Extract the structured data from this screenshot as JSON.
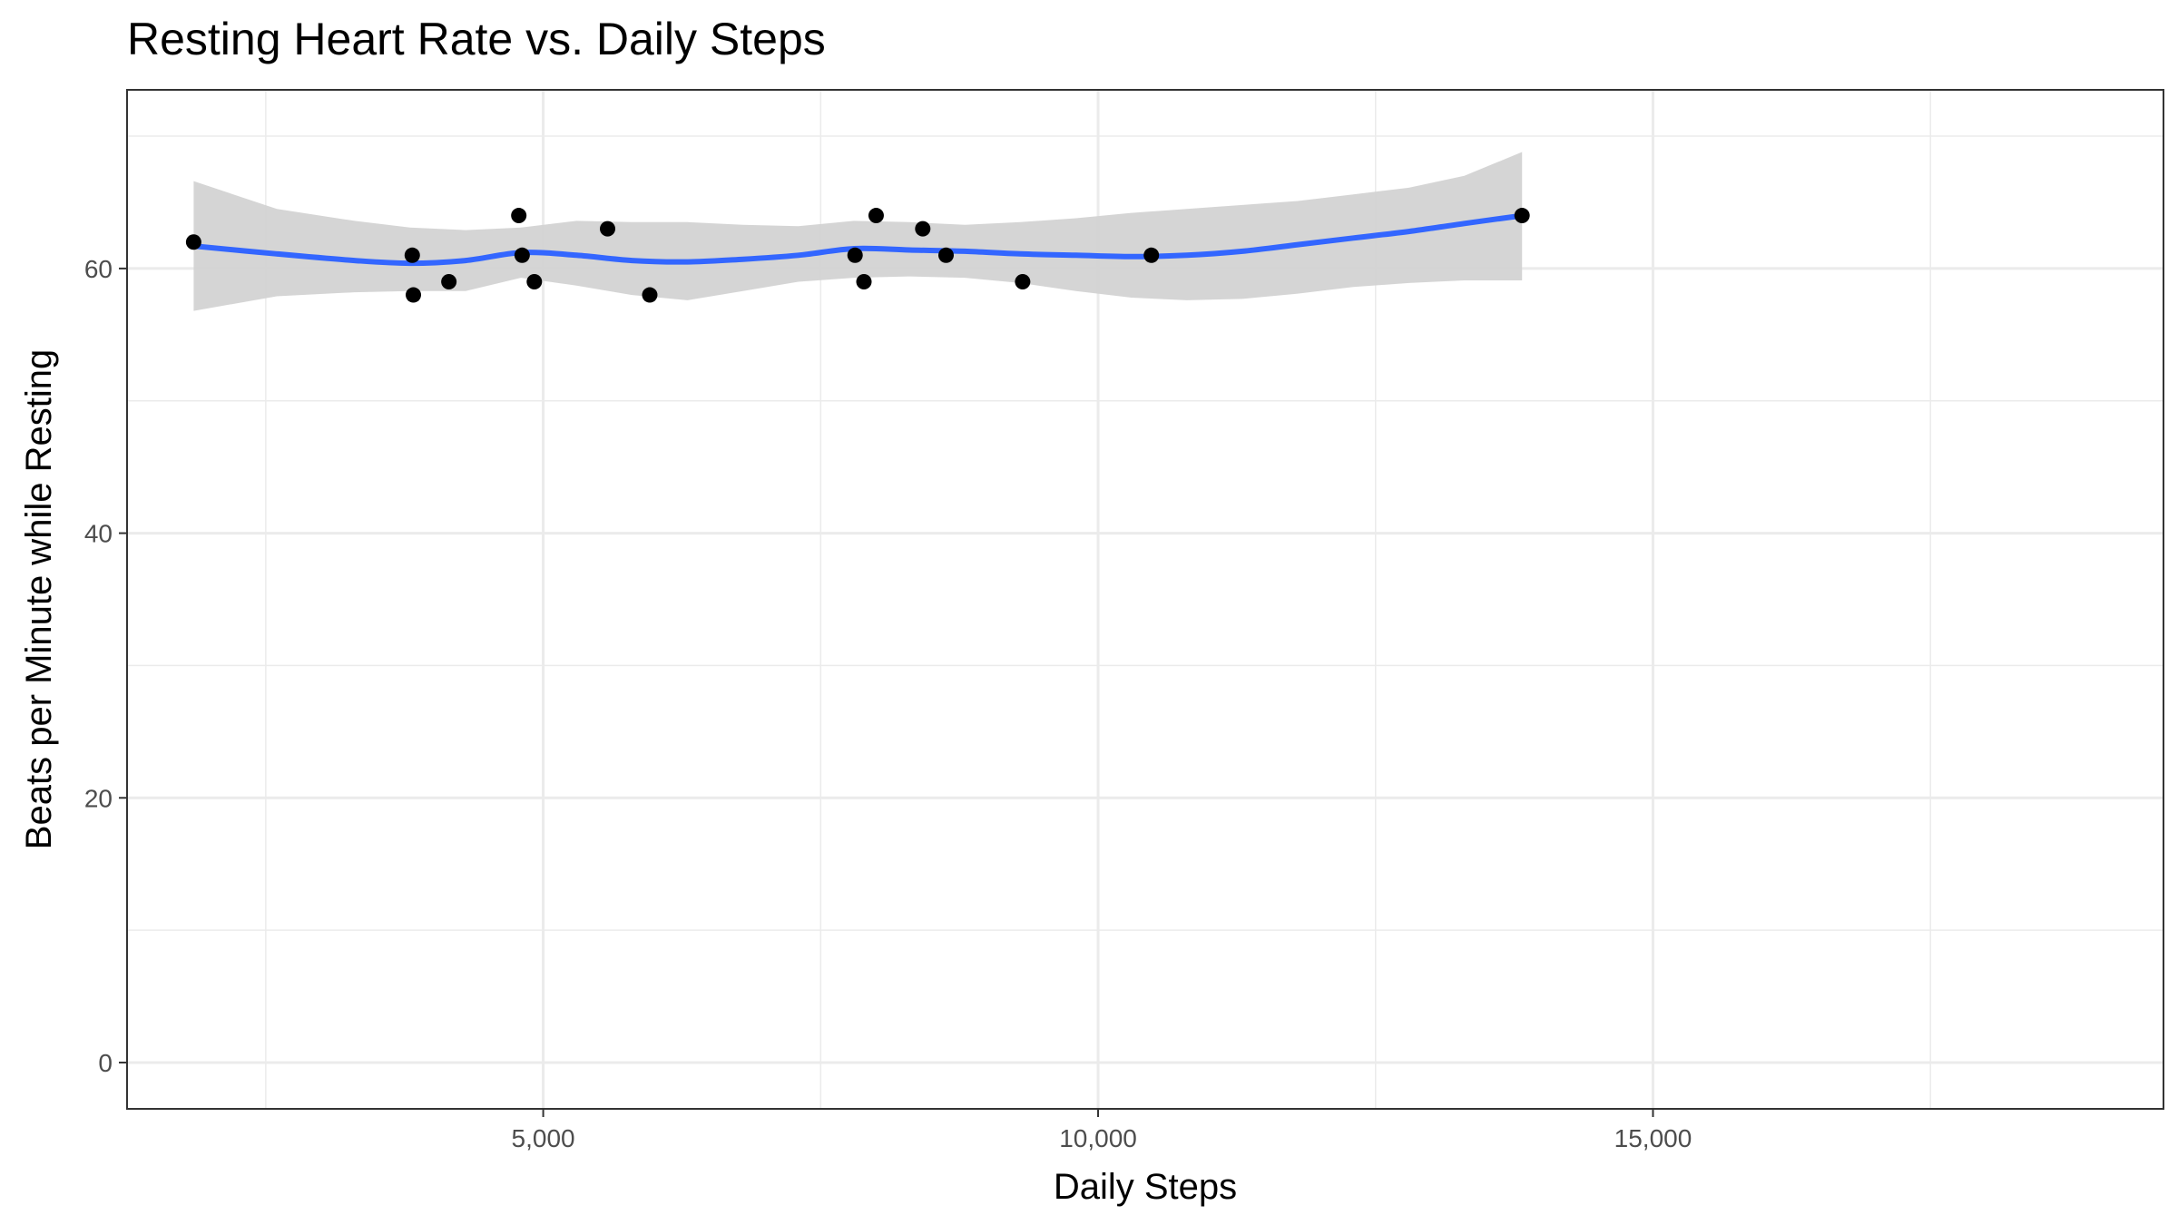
{
  "chart_data": {
    "type": "scatter",
    "title": "Resting Heart Rate vs. Daily Steps",
    "xlabel": "Daily Steps",
    "ylabel": "Beats per Minute while Resting",
    "xlim": [
      1250,
      19600
    ],
    "ylim": [
      -3.5,
      73.5
    ],
    "x_ticks": [
      5000,
      10000,
      15000
    ],
    "x_tick_labels": [
      "5,000",
      "10,000",
      "15,000"
    ],
    "x_minor_ticks": [
      2500,
      7500,
      12500,
      17500
    ],
    "y_ticks": [
      0,
      20,
      40,
      60
    ],
    "y_tick_labels": [
      "0",
      "20",
      "40",
      "60"
    ],
    "y_minor_ticks": [
      10,
      30,
      50,
      70
    ],
    "grid": true,
    "legend": "none",
    "points": [
      {
        "x": 1850,
        "y": 62
      },
      {
        "x": 3820,
        "y": 61
      },
      {
        "x": 3830,
        "y": 58
      },
      {
        "x": 4150,
        "y": 59
      },
      {
        "x": 4780,
        "y": 64
      },
      {
        "x": 4810,
        "y": 61
      },
      {
        "x": 4920,
        "y": 59
      },
      {
        "x": 5580,
        "y": 63
      },
      {
        "x": 5960,
        "y": 58
      },
      {
        "x": 7810,
        "y": 61
      },
      {
        "x": 7890,
        "y": 59
      },
      {
        "x": 8000,
        "y": 64
      },
      {
        "x": 8420,
        "y": 63
      },
      {
        "x": 8630,
        "y": 61
      },
      {
        "x": 9320,
        "y": 59
      },
      {
        "x": 10480,
        "y": 61
      },
      {
        "x": 13820,
        "y": 64
      }
    ],
    "smooth": {
      "method": "loess",
      "x": [
        1850,
        2600,
        3300,
        3800,
        4300,
        4800,
        5300,
        5800,
        6300,
        6800,
        7300,
        7800,
        8300,
        8800,
        9300,
        9800,
        10300,
        10800,
        11300,
        11800,
        12300,
        12800,
        13300,
        13820
      ],
      "y": [
        61.7,
        61.1,
        60.6,
        60.4,
        60.6,
        61.2,
        61.0,
        60.6,
        60.5,
        60.7,
        61.0,
        61.5,
        61.4,
        61.3,
        61.1,
        61.0,
        60.9,
        61.0,
        61.3,
        61.8,
        62.3,
        62.8,
        63.4,
        64.0
      ],
      "ci_upper": [
        66.6,
        64.5,
        63.6,
        63.1,
        62.9,
        63.1,
        63.6,
        63.5,
        63.5,
        63.3,
        63.2,
        63.6,
        63.5,
        63.3,
        63.5,
        63.8,
        64.2,
        64.5,
        64.8,
        65.1,
        65.6,
        66.1,
        67.0,
        68.8
      ],
      "ci_lower": [
        56.8,
        57.9,
        58.2,
        58.3,
        58.3,
        59.3,
        58.7,
        58.0,
        57.6,
        58.3,
        59.0,
        59.3,
        59.4,
        59.3,
        58.9,
        58.3,
        57.8,
        57.6,
        57.7,
        58.1,
        58.6,
        58.9,
        59.1,
        59.1
      ],
      "color": "#3366ff",
      "band_color": "#d3d3d3"
    },
    "point_color": "#000000",
    "grid_color": "#ebebeb",
    "panel_border_color": "#333333"
  }
}
